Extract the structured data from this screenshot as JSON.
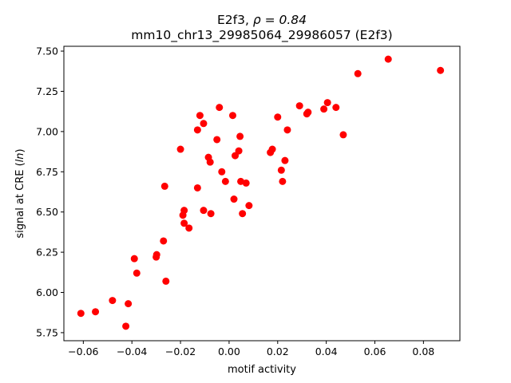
{
  "chart_data": {
    "type": "scatter",
    "title_line1_prefix": "E2f3, ",
    "title_line1_rho": "ρ = 0.84",
    "title_line2": "mm10_chr13_29985064_29986057 (E2f3)",
    "xlabel": "motif activity",
    "ylabel_prefix": "signal at CRE (",
    "ylabel_italic": "ln",
    "ylabel_suffix": ")",
    "xlim": [
      -0.068,
      0.095
    ],
    "ylim": [
      5.7,
      7.53
    ],
    "xticks": [
      -0.06,
      -0.04,
      -0.02,
      0.0,
      0.02,
      0.04,
      0.06,
      0.08
    ],
    "xtick_labels": [
      "−0.06",
      "−0.04",
      "−0.02",
      "0.00",
      "0.02",
      "0.04",
      "0.06",
      "0.08"
    ],
    "yticks": [
      5.75,
      6.0,
      6.25,
      6.5,
      6.75,
      7.0,
      7.25,
      7.5
    ],
    "ytick_labels": [
      "5.75",
      "6.00",
      "6.25",
      "6.50",
      "6.75",
      "7.00",
      "7.25",
      "7.50"
    ],
    "grid": false,
    "legend": "none",
    "marker_color": "#ff0000",
    "points": [
      [
        -0.061,
        5.87
      ],
      [
        -0.055,
        5.88
      ],
      [
        -0.048,
        5.95
      ],
      [
        -0.0425,
        5.79
      ],
      [
        -0.0415,
        5.93
      ],
      [
        -0.039,
        6.21
      ],
      [
        -0.038,
        6.12
      ],
      [
        -0.03,
        6.22
      ],
      [
        -0.0298,
        6.235
      ],
      [
        -0.027,
        6.32
      ],
      [
        -0.026,
        6.07
      ],
      [
        -0.0265,
        6.66
      ],
      [
        -0.02,
        6.89
      ],
      [
        -0.019,
        6.48
      ],
      [
        -0.0185,
        6.51
      ],
      [
        -0.0185,
        6.43
      ],
      [
        -0.0165,
        6.4
      ],
      [
        -0.013,
        6.65
      ],
      [
        -0.013,
        7.01
      ],
      [
        -0.012,
        7.1
      ],
      [
        -0.0105,
        7.05
      ],
      [
        -0.0105,
        6.51
      ],
      [
        -0.0085,
        6.84
      ],
      [
        -0.0078,
        6.81
      ],
      [
        -0.0075,
        6.49
      ],
      [
        -0.005,
        6.95
      ],
      [
        -0.004,
        7.15
      ],
      [
        -0.003,
        6.75
      ],
      [
        -0.0015,
        6.69
      ],
      [
        0.0015,
        7.1
      ],
      [
        0.002,
        6.58
      ],
      [
        0.0025,
        6.85
      ],
      [
        0.004,
        6.88
      ],
      [
        0.0045,
        6.97
      ],
      [
        0.0048,
        6.69
      ],
      [
        0.0055,
        6.49
      ],
      [
        0.007,
        6.68
      ],
      [
        0.0082,
        6.54
      ],
      [
        0.017,
        6.87
      ],
      [
        0.0178,
        6.89
      ],
      [
        0.02,
        7.09
      ],
      [
        0.0215,
        6.76
      ],
      [
        0.022,
        6.69
      ],
      [
        0.023,
        6.82
      ],
      [
        0.024,
        7.01
      ],
      [
        0.029,
        7.16
      ],
      [
        0.032,
        7.11
      ],
      [
        0.0325,
        7.12
      ],
      [
        0.039,
        7.14
      ],
      [
        0.0405,
        7.18
      ],
      [
        0.044,
        7.15
      ],
      [
        0.047,
        6.98
      ],
      [
        0.053,
        7.36
      ],
      [
        0.0655,
        7.45
      ],
      [
        0.087,
        7.38
      ]
    ]
  }
}
